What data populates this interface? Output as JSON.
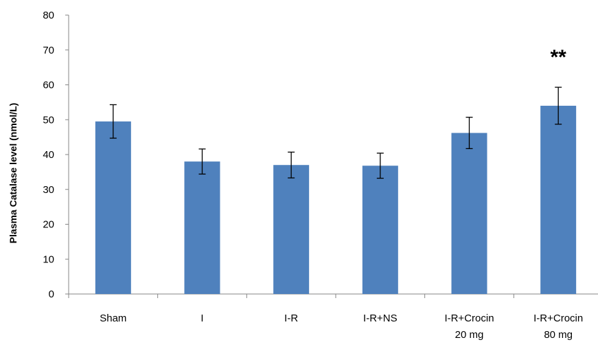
{
  "chart_data": {
    "type": "bar",
    "categories": [
      [
        "Sham"
      ],
      [
        "I"
      ],
      [
        "I-R"
      ],
      [
        "I-R+NS"
      ],
      [
        "I-R+Crocin",
        "20 mg"
      ],
      [
        "I-R+Crocin",
        "80 mg"
      ]
    ],
    "values": [
      49.5,
      38.0,
      37.0,
      36.8,
      46.2,
      54.0
    ],
    "errors": [
      4.8,
      3.6,
      3.7,
      3.6,
      4.5,
      5.3
    ],
    "annotations": [
      "",
      "",
      "",
      "",
      "",
      "**"
    ],
    "ylabel": "Plasma Catalase level (nmol/L)",
    "ylim": [
      0,
      80
    ],
    "yticks": [
      "0",
      "10",
      "20",
      "30",
      "40",
      "50",
      "60",
      "70",
      "80"
    ],
    "grid": false,
    "legend": "none",
    "colors": {
      "bar": "#4f81bd",
      "axis": "#868686",
      "text": "#000000"
    }
  }
}
